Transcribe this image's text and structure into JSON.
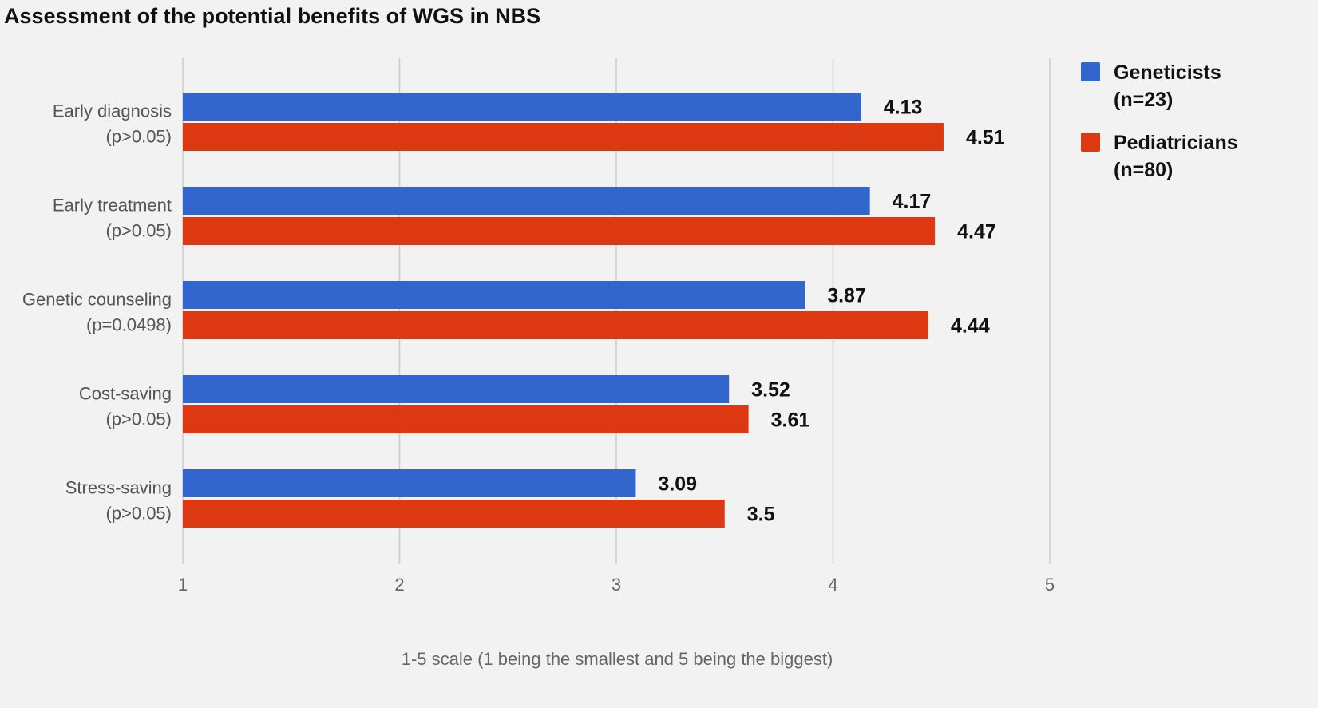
{
  "chart_data": {
    "type": "bar",
    "orientation": "horizontal",
    "title": "Assessment of the potential benefits of WGS in NBS",
    "xlabel": "1-5 scale (1 being the smallest and 5 being the biggest)",
    "ylabel": "",
    "xlim": [
      1,
      5
    ],
    "xticks": [
      1,
      2,
      3,
      4,
      5
    ],
    "grid": "vertical",
    "legend_position": "right",
    "categories": [
      [
        "Early diagnosis",
        "(p>0.05)"
      ],
      [
        "Early treatment",
        "(p>0.05)"
      ],
      [
        "Genetic counseling",
        "(p=0.0498)"
      ],
      [
        "Cost-saving",
        "(p>0.05)"
      ],
      [
        "Stress-saving",
        "(p>0.05)"
      ]
    ],
    "series": [
      {
        "name": [
          "Geneticists",
          "(n=23)"
        ],
        "color": "#3366CC",
        "values": [
          4.13,
          4.17,
          3.87,
          3.52,
          3.09
        ],
        "labels": [
          "4.13",
          "4.17",
          "3.87",
          "3.52",
          "3.09"
        ]
      },
      {
        "name": [
          "Pediatricians",
          "(n=80)"
        ],
        "color": "#DC3912",
        "values": [
          4.51,
          4.47,
          4.44,
          3.61,
          3.5
        ],
        "labels": [
          "4.51",
          "4.47",
          "4.44",
          "3.61",
          "3.5"
        ]
      }
    ],
    "colors": {
      "background": "#F2F2F2",
      "grid": "#CCCCCC",
      "category_text": "#555555",
      "tick_text": "#666666",
      "value_text": "#111111",
      "title_text": "#111111"
    }
  }
}
